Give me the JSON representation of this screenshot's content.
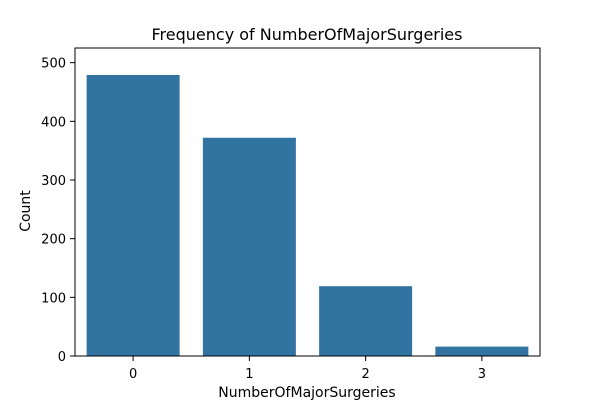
{
  "chart_data": {
    "type": "bar",
    "title": "Frequency of NumberOfMajorSurgeries",
    "xlabel": "NumberOfMajorSurgeries",
    "ylabel": "Count",
    "categories": [
      "0",
      "1",
      "2",
      "3"
    ],
    "values": [
      479,
      372,
      119,
      16
    ],
    "ylim": [
      0,
      525
    ],
    "yticks": [
      0,
      100,
      200,
      300,
      400,
      500
    ],
    "grid": false,
    "bar_color": "#3274a1"
  }
}
